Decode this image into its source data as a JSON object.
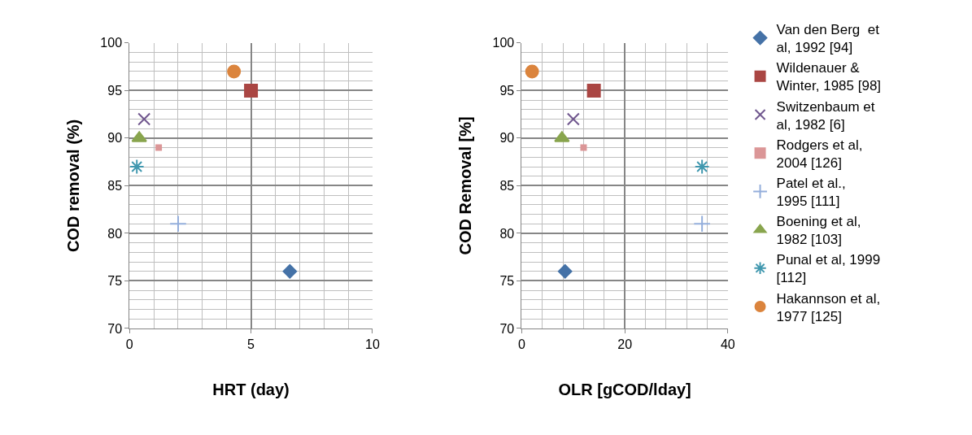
{
  "chart_data": [
    {
      "type": "scatter",
      "xlabel": "HRT (day)",
      "ylabel": "COD removal (%)",
      "xlim": [
        0,
        10
      ],
      "xticks": [
        0,
        5,
        10
      ],
      "ylim": [
        70,
        100
      ],
      "yticks": [
        70,
        75,
        80,
        85,
        90,
        95,
        100
      ],
      "grid": true,
      "legend": false,
      "series": [
        {
          "color": "#4572a7",
          "marker": "diamond",
          "x": [
            6.6
          ],
          "values": [
            76
          ]
        },
        {
          "color": "#aa4643",
          "marker": "square",
          "x": [
            5.0
          ],
          "values": [
            95
          ]
        },
        {
          "color": "#71588f",
          "marker": "cross",
          "x": [
            0.6
          ],
          "values": [
            92
          ]
        },
        {
          "color": "#db9697",
          "x": [
            1.2
          ],
          "values": [
            89
          ]
        },
        {
          "color": "#94aedb",
          "x": [
            2.0
          ],
          "values": [
            81
          ]
        },
        {
          "color": "#89a54e",
          "marker": "triangle",
          "x": [
            0.4
          ],
          "values": [
            90
          ]
        },
        {
          "color": "#4198af",
          "x": [
            0.3
          ],
          "values": [
            87
          ]
        },
        {
          "color": "#db843d",
          "marker": "circle",
          "x": [
            4.3
          ],
          "values": [
            97
          ]
        }
      ]
    },
    {
      "type": "scatter",
      "xlabel": "OLR [gCOD/lday]",
      "ylabel": "COD Removal [%]",
      "xlim": [
        0,
        40
      ],
      "xticks": [
        0,
        20,
        40
      ],
      "ylim": [
        70,
        100
      ],
      "yticks": [
        70,
        75,
        80,
        85,
        90,
        95,
        100
      ],
      "grid": true,
      "legend": "right",
      "series": [
        {
          "name": "Van den Berg  et al, 1992 [94]",
          "color": "#4572a7",
          "marker": "diamond",
          "x": [
            8.4
          ],
          "values": [
            76
          ]
        },
        {
          "name": "Wildenauer & Winter, 1985 [98]",
          "color": "#aa4643",
          "marker": "square",
          "x": [
            14
          ],
          "values": [
            95
          ]
        },
        {
          "name": "Switzenbaum et al, 1982 [6]",
          "color": "#71588f",
          "marker": "cross",
          "x": [
            10
          ],
          "values": [
            92
          ]
        },
        {
          "name": "Rodgers et al, 2004 [126]",
          "color": "#db9697",
          "x": [
            12
          ],
          "values": [
            89
          ]
        },
        {
          "name": "Patel et al., 1995 [111]",
          "color": "#94aedb",
          "x": [
            35
          ],
          "values": [
            81
          ]
        },
        {
          "name": "Boening et al, 1982 [103]",
          "color": "#89a54e",
          "marker": "triangle",
          "x": [
            7.8
          ],
          "values": [
            90
          ]
        },
        {
          "name": "Punal et al, 1999 [112]",
          "color": "#4198af",
          "x": [
            35
          ],
          "values": [
            87
          ]
        },
        {
          "name": "Hakannson et al, 1977 [125]",
          "color": "#db843d",
          "marker": "circle",
          "x": [
            2
          ],
          "values": [
            97
          ]
        }
      ]
    }
  ]
}
